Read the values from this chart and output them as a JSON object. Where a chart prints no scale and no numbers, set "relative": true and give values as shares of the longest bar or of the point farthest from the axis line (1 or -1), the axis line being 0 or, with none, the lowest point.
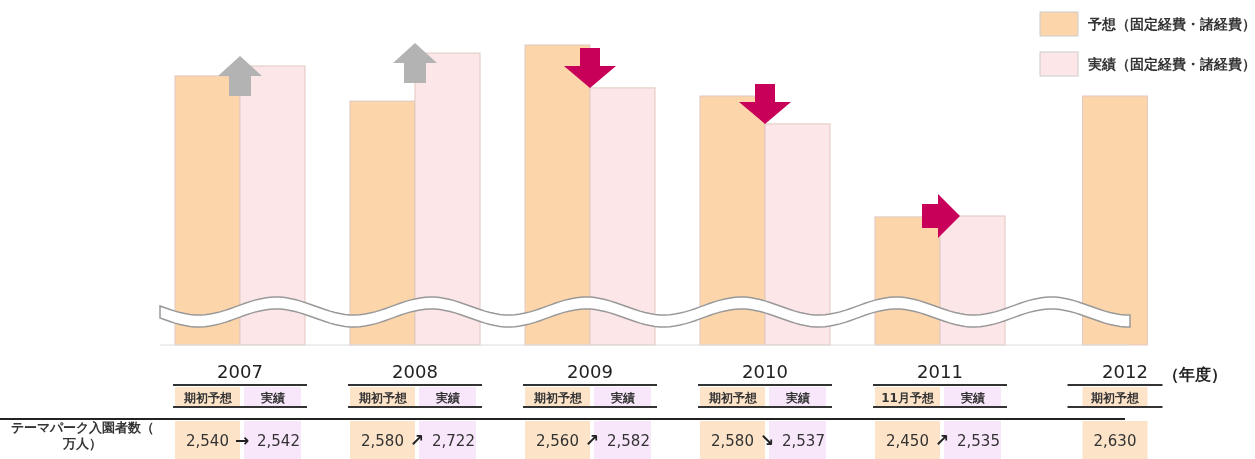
{
  "chart_data": {
    "type": "bar",
    "relative": true,
    "xlabel": "（年度）",
    "legend": "top right",
    "categories": [
      "2007",
      "2008",
      "2009",
      "2010",
      "2011",
      "2012"
    ],
    "series": [
      {
        "name": "予想（固定経費・諸経費）",
        "color": "#fdd5ab",
        "values": [
          0.897,
          0.813,
          1,
          0.83,
          0.427,
          0.83
        ]
      },
      {
        "name": "実績（固定経費・諸経費）",
        "color": "#fde6e8",
        "values": [
          0.93,
          0.973,
          0.857,
          0.737,
          0.43,
          null
        ]
      }
    ],
    "annotations": [
      "テーマパーク入園者数（万人）",
      "期初予想",
      "2,540",
      "→",
      "実績",
      "2,542",
      "期初予想",
      "2,580",
      "↗",
      "実績",
      "2,722",
      "期初予想",
      "2,560",
      "↗",
      "実績",
      "2,582",
      "期初予想",
      "2,580",
      "↘",
      "実績",
      "2,537",
      "11月予想",
      "2,450",
      "↗",
      "実績",
      "2,535",
      "期初予想",
      "2,630"
    ]
  }
}
